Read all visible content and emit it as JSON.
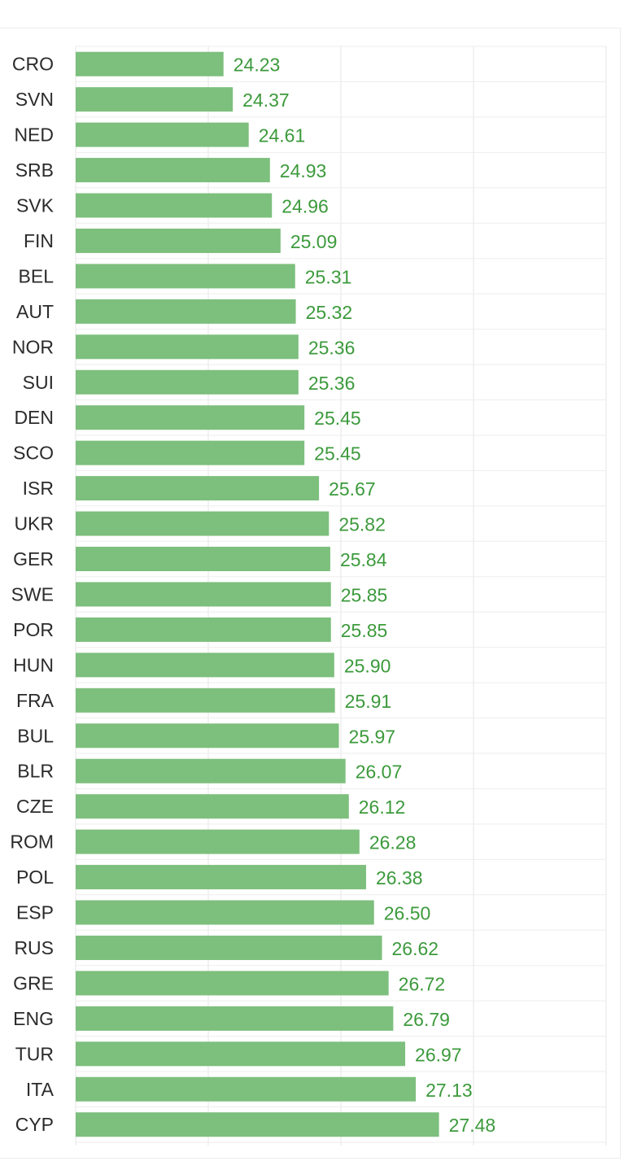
{
  "chart_data": {
    "type": "bar",
    "orientation": "horizontal",
    "categories": [
      "CRO",
      "SVN",
      "NED",
      "SRB",
      "SVK",
      "FIN",
      "BEL",
      "AUT",
      "NOR",
      "SUI",
      "DEN",
      "SCO",
      "ISR",
      "UKR",
      "GER",
      "SWE",
      "POR",
      "HUN",
      "FRA",
      "BUL",
      "BLR",
      "CZE",
      "ROM",
      "POL",
      "ESP",
      "RUS",
      "GRE",
      "ENG",
      "TUR",
      "ITA",
      "CYP"
    ],
    "values": [
      24.23,
      24.37,
      24.61,
      24.93,
      24.96,
      25.09,
      25.31,
      25.32,
      25.36,
      25.36,
      25.45,
      25.45,
      25.67,
      25.82,
      25.84,
      25.85,
      25.85,
      25.9,
      25.91,
      25.97,
      26.07,
      26.12,
      26.28,
      26.38,
      26.5,
      26.62,
      26.72,
      26.79,
      26.97,
      27.13,
      27.48
    ],
    "value_labels": [
      "24.23",
      "24.37",
      "24.61",
      "24.93",
      "24.96",
      "25.09",
      "25.31",
      "25.32",
      "25.36",
      "25.36",
      "25.45",
      "25.45",
      "25.67",
      "25.82",
      "25.84",
      "25.85",
      "25.85",
      "25.90",
      "25.91",
      "25.97",
      "26.07",
      "26.12",
      "26.28",
      "26.38",
      "26.50",
      "26.62",
      "26.72",
      "26.79",
      "26.97",
      "27.13",
      "27.48"
    ],
    "title": "",
    "xlabel": "",
    "ylabel": "",
    "xlim": [
      22.0,
      30.0
    ],
    "grid": true,
    "legend": "none",
    "bar_color": "#7dbf7d",
    "label_color": "#3c9a3c",
    "grid_color": "#e6e6e6"
  }
}
